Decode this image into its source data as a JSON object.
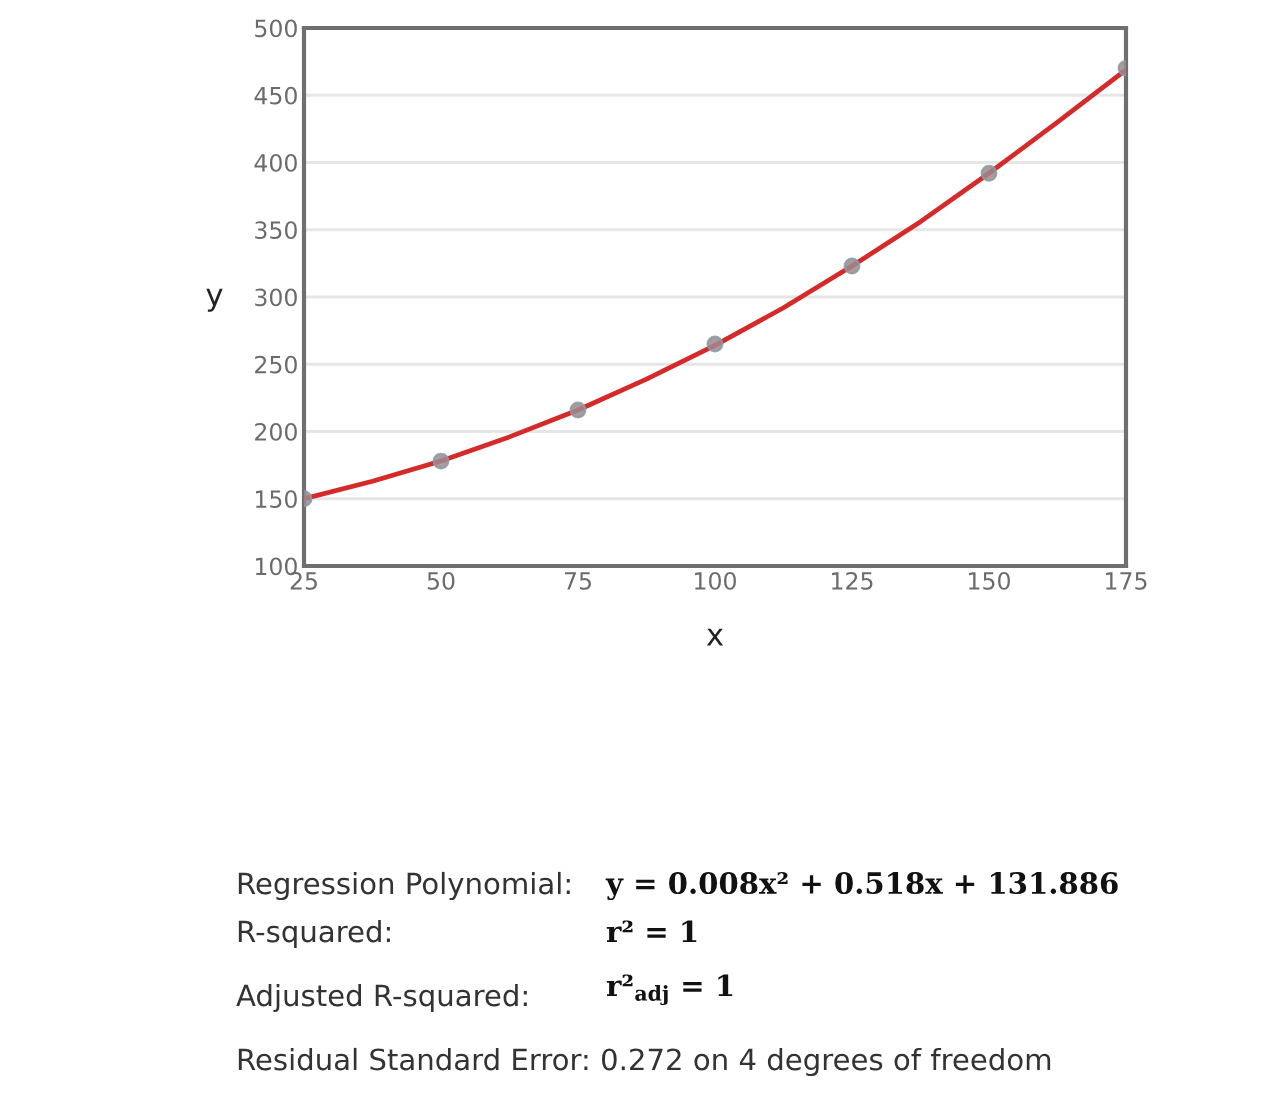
{
  "chart_data": {
    "type": "scatter",
    "xlabel": "x",
    "ylabel": "y",
    "series": [
      {
        "type": "line",
        "color": "#d42a2a",
        "x": [
          25,
          37.5,
          50,
          62.5,
          75,
          87.5,
          100,
          112.5,
          125,
          137.5,
          150,
          162.5,
          175
        ],
        "values": [
          150,
          163,
          178,
          196,
          216,
          239,
          264,
          292,
          323,
          356,
          392,
          430,
          469
        ],
        "marker": "none",
        "line_style": "solid"
      },
      {
        "color": "#9c8a8e",
        "x": [
          25,
          50,
          75,
          100,
          125,
          150,
          175
        ],
        "values": [
          150,
          178,
          216,
          265,
          323,
          392,
          470
        ],
        "marker": "circle"
      }
    ],
    "xlim": [
      25,
      175
    ],
    "xticks": [
      25,
      50,
      75,
      100,
      125,
      150,
      175
    ],
    "ylim": [
      100,
      500
    ],
    "yticks": [
      100,
      150,
      200,
      250,
      300,
      350,
      400,
      450,
      500
    ],
    "grid": "y",
    "annotations": [
      "Regression Polynomial:",
      "y = 0.008x² + 0.518x + 131.886",
      "R-squared:",
      "r² = 1",
      "Adjusted R-squared:",
      "r²$_{adj}$ = 1",
      "Residual Standard Error: 0.272 on 4 degrees of freedom"
    ]
  }
}
